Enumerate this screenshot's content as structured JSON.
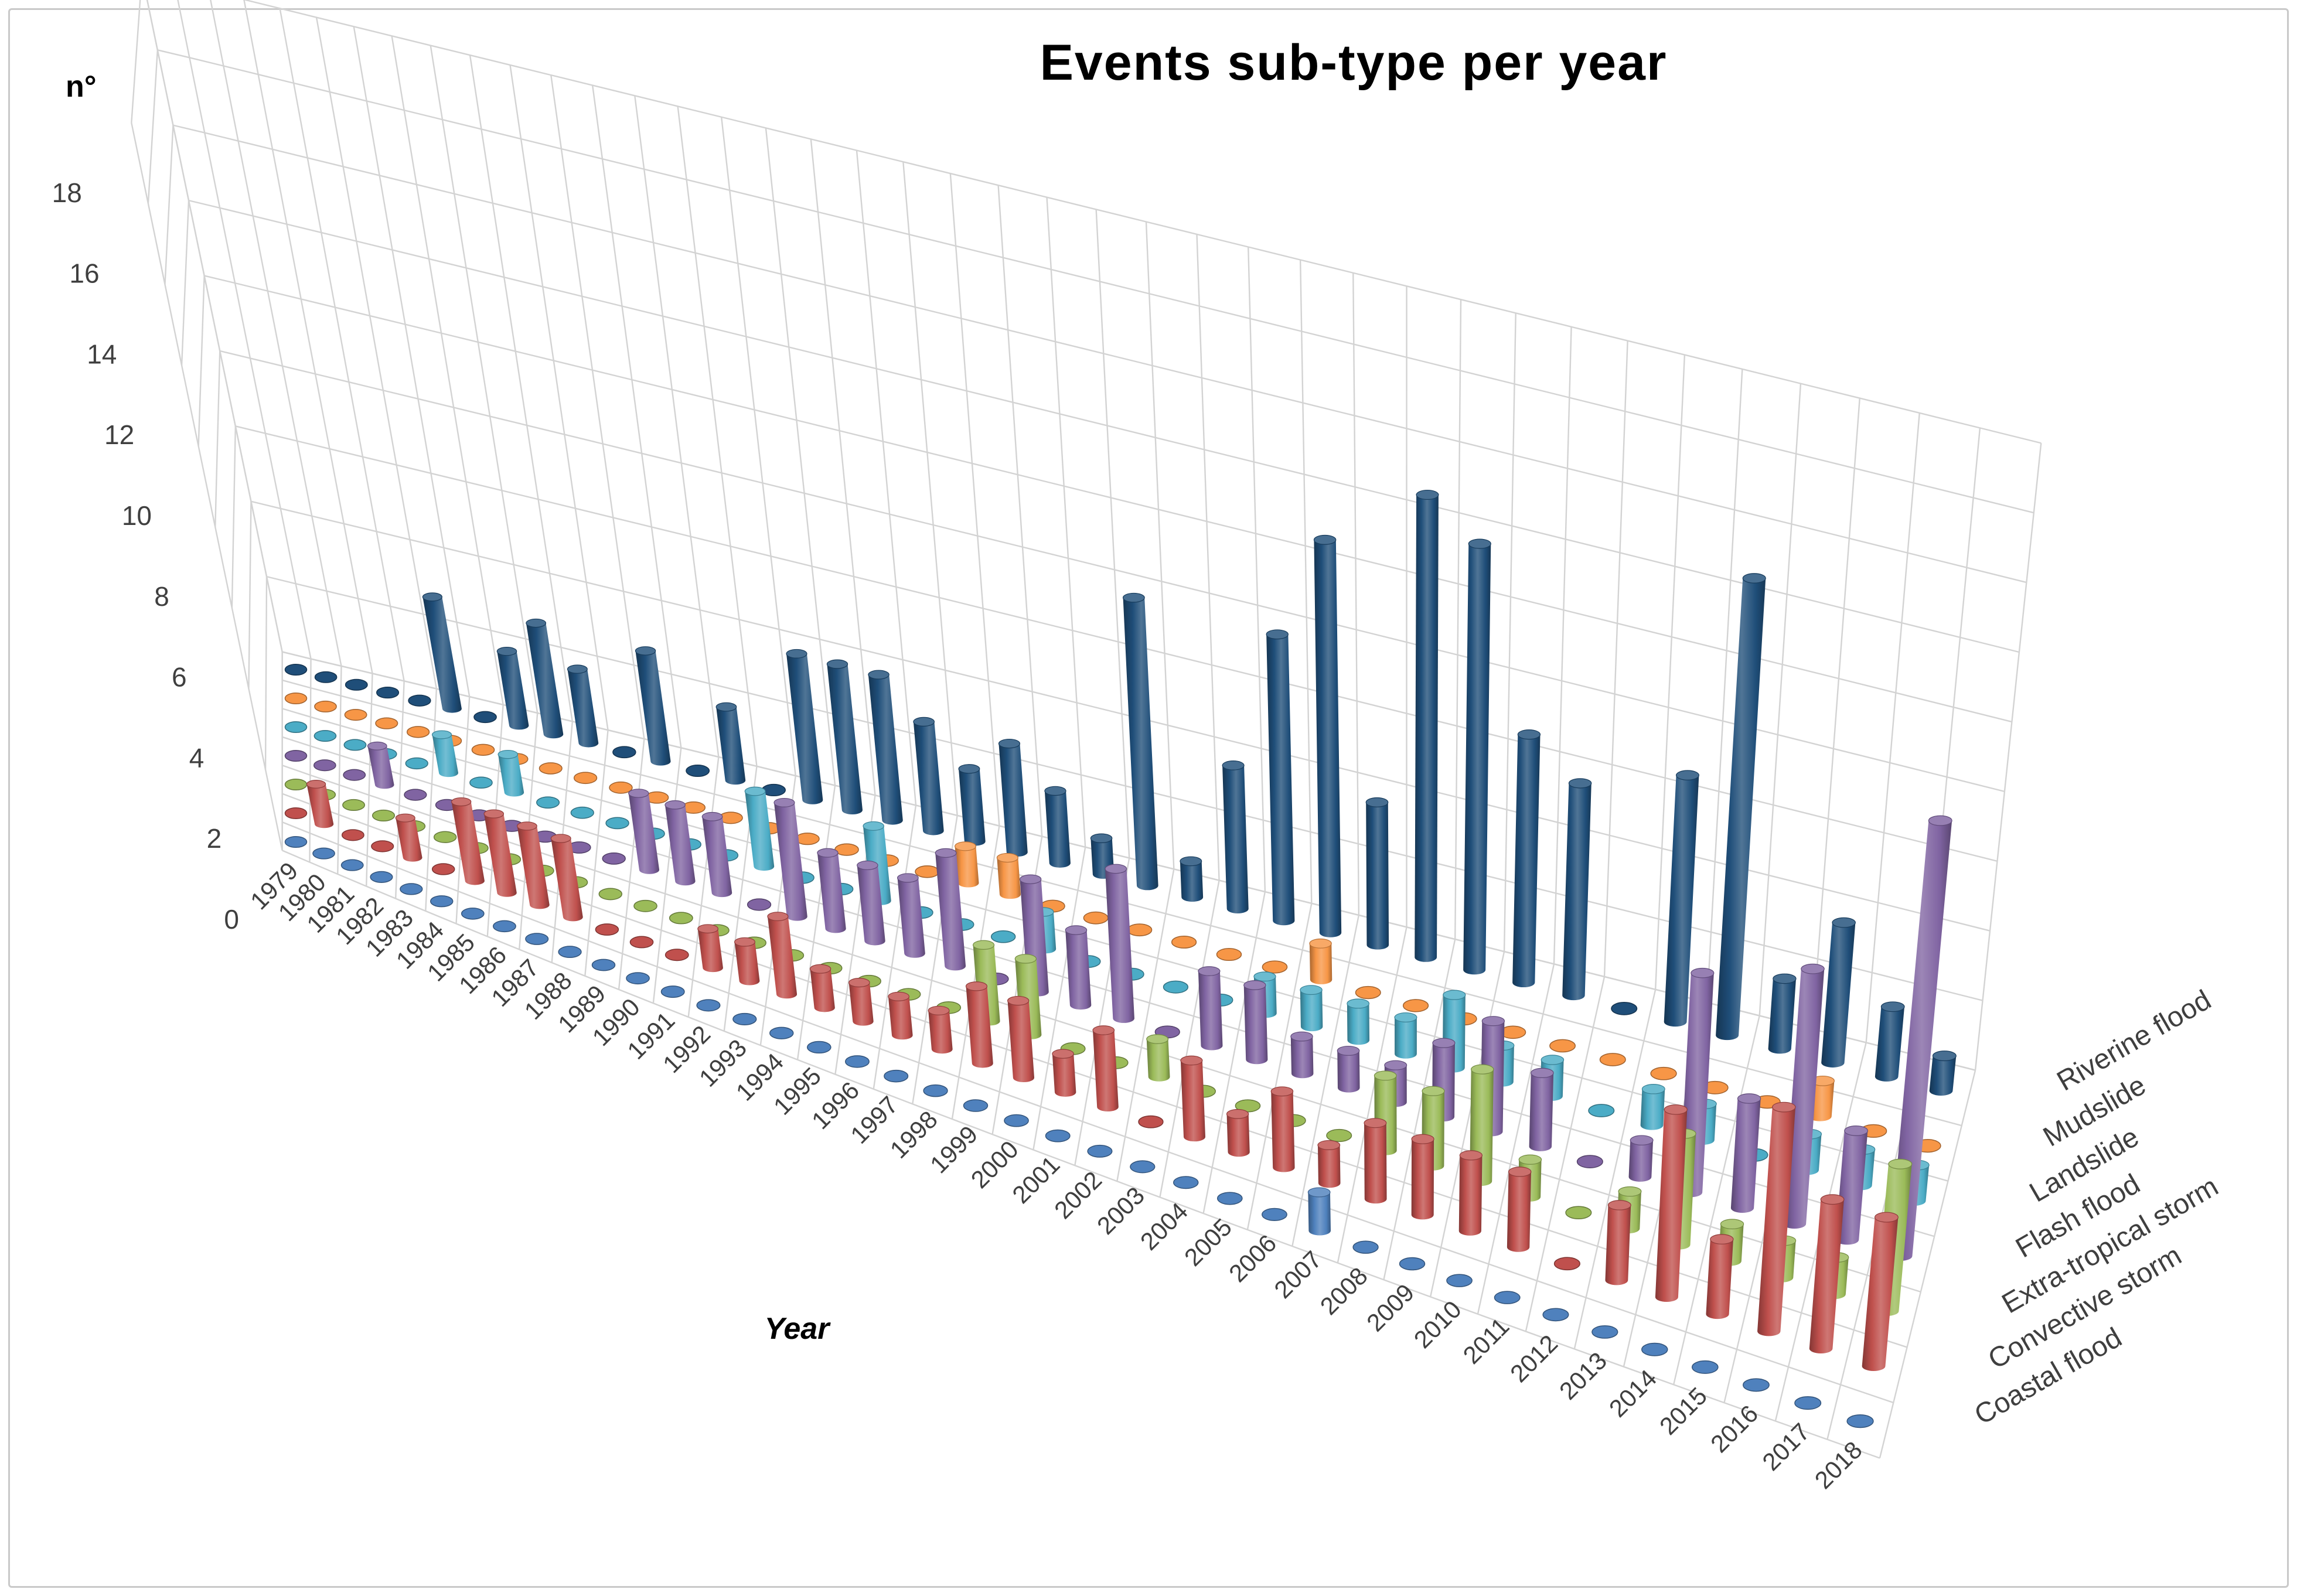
{
  "title": "Events sub-type per year",
  "y_axis_label": "n°",
  "x_axis_label": "Year",
  "chart_data": {
    "type": "bar",
    "subtype": "3d-cylinder-column",
    "title": "Events sub-type per year",
    "xlabel": "Year",
    "ylabel": "n°",
    "ylim": [
      0,
      18
    ],
    "ytick_step": 2,
    "grid": true,
    "legend_position": "right-depth-axis",
    "categories": [
      1979,
      1980,
      1981,
      1982,
      1983,
      1984,
      1985,
      1986,
      1987,
      1988,
      1989,
      1990,
      1991,
      1992,
      1993,
      1994,
      1995,
      1996,
      1997,
      1998,
      1999,
      2000,
      2001,
      2002,
      2003,
      2004,
      2005,
      2006,
      2007,
      2008,
      2009,
      2010,
      2011,
      2012,
      2013,
      2014,
      2015,
      2016,
      2017,
      2018
    ],
    "series": [
      {
        "name": "Coastal flood",
        "color": "#4F81BD",
        "depth_row": 0,
        "values": [
          0,
          0,
          0,
          0,
          0,
          0,
          0,
          0,
          0,
          0,
          0,
          0,
          0,
          0,
          0,
          0,
          0,
          0,
          0,
          0,
          0,
          0,
          0,
          0,
          0,
          0,
          0,
          0,
          1,
          0,
          0,
          0,
          0,
          0,
          0,
          0,
          0,
          0,
          0,
          0
        ]
      },
      {
        "name": "Convective storm",
        "color": "#C0504D",
        "depth_row": 1,
        "values": [
          0,
          1,
          0,
          0,
          1,
          0,
          2,
          2,
          2,
          2,
          0,
          0,
          0,
          1,
          1,
          2,
          1,
          1,
          1,
          1,
          2,
          2,
          1,
          2,
          0,
          2,
          1,
          2,
          1,
          2,
          2,
          2,
          2,
          0,
          2,
          5,
          2,
          6,
          4,
          4
        ]
      },
      {
        "name": "Extra-tropical storm",
        "color": "#9BBB59",
        "depth_row": 2,
        "values": [
          0,
          0,
          0,
          0,
          0,
          0,
          0,
          0,
          0,
          0,
          0,
          0,
          0,
          0,
          0,
          0,
          0,
          0,
          0,
          0,
          2,
          2,
          0,
          0,
          1,
          0,
          0,
          0,
          0,
          2,
          2,
          3,
          1,
          0,
          1,
          3,
          1,
          1,
          1,
          4
        ]
      },
      {
        "name": "Flash flood",
        "color": "#8064A2",
        "depth_row": 3,
        "values": [
          0,
          0,
          0,
          1,
          0,
          0,
          0,
          0,
          0,
          0,
          0,
          2,
          2,
          2,
          0,
          3,
          2,
          2,
          2,
          3,
          0,
          3,
          2,
          4,
          0,
          2,
          2,
          1,
          1,
          1,
          2,
          3,
          2,
          0,
          1,
          6,
          3,
          7,
          3,
          12
        ]
      },
      {
        "name": "Landslide",
        "color": "#4BACC6",
        "depth_row": 4,
        "values": [
          0,
          0,
          0,
          0,
          0,
          1,
          0,
          1,
          0,
          0,
          0,
          0,
          0,
          0,
          2,
          0,
          0,
          2,
          0,
          0,
          0,
          1,
          0,
          0,
          0,
          0,
          1,
          1,
          1,
          1,
          2,
          1,
          1,
          0,
          1,
          1,
          0,
          1,
          1,
          1
        ]
      },
      {
        "name": "Mudslide",
        "color": "#F79646",
        "depth_row": 5,
        "values": [
          0,
          0,
          0,
          0,
          0,
          0,
          0,
          0,
          0,
          0,
          0,
          0,
          0,
          0,
          0,
          0,
          0,
          0,
          0,
          1,
          1,
          0,
          0,
          0,
          0,
          0,
          0,
          1,
          0,
          0,
          0,
          0,
          0,
          0,
          0,
          0,
          0,
          1,
          0,
          0
        ]
      },
      {
        "name": "Riverine flood",
        "color": "#1F4E79",
        "depth_row": 6,
        "values": [
          0,
          0,
          0,
          0,
          0,
          3,
          0,
          2,
          3,
          2,
          0,
          3,
          0,
          2,
          0,
          4,
          4,
          4,
          3,
          2,
          3,
          2,
          1,
          8,
          1,
          4,
          8,
          11,
          4,
          13,
          12,
          7,
          6,
          0,
          7,
          13,
          2,
          4,
          2,
          1
        ]
      }
    ],
    "yticks": [
      0,
      2,
      4,
      6,
      8,
      10,
      12,
      14,
      16,
      18
    ]
  },
  "colors": {
    "grid": "#D3D3D3",
    "axis_text": "#3F3F3F",
    "frame_border": "#C9C9C9"
  }
}
